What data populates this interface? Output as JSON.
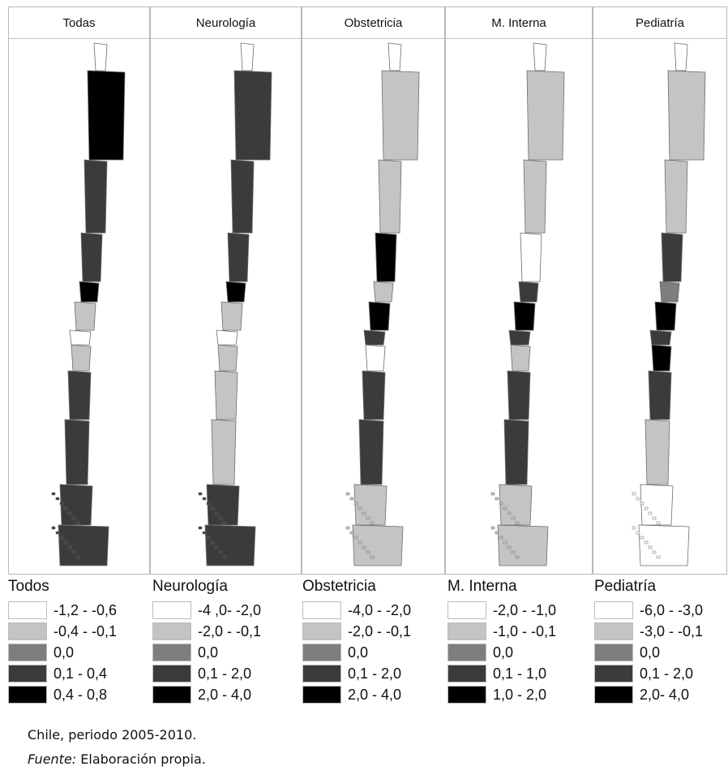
{
  "colors": {
    "c1": "#ffffff",
    "c2": "#c4c4c4",
    "c3": "#7e7e7e",
    "c4": "#3b3b3b",
    "c5": "#000000"
  },
  "panels": [
    {
      "title": "Todas",
      "legend_title": "Todos",
      "classes": [
        "-1,2 - -0,6",
        "-0,4 - -0,1",
        "0,0",
        "0,1 - 0,4",
        "0,4 - 0,8"
      ],
      "regions": [
        "c1",
        "c5",
        "c4",
        "c4",
        "c5",
        "c2",
        "c1",
        "c2",
        "c4",
        "c4",
        "c4",
        "c4"
      ]
    },
    {
      "title": "Neurología",
      "legend_title": "Neurología",
      "classes": [
        "-4 ,0- -2,0",
        "-2,0 - -0,1",
        "0,0",
        "0,1 - 2,0",
        "2,0 - 4,0"
      ],
      "regions": [
        "c1",
        "c4",
        "c4",
        "c4",
        "c5",
        "c2",
        "c1",
        "c2",
        "c2",
        "c2",
        "c4",
        "c4"
      ]
    },
    {
      "title": "Obstetricia",
      "legend_title": "Obstetricia",
      "classes": [
        "-4,0 - -2,0",
        "-2,0 - -0,1",
        "0,0",
        "0,1 - 2,0",
        "2,0 - 4,0"
      ],
      "regions": [
        "c1",
        "c2",
        "c2",
        "c5",
        "c2",
        "c5",
        "c4",
        "c1",
        "c4",
        "c4",
        "c2",
        "c2"
      ]
    },
    {
      "title": "M. Interna",
      "legend_title": "M. Interna",
      "classes": [
        "-2,0 - -1,0",
        "-1,0 - -0,1",
        "0,0",
        "0,1 - 1,0",
        "1,0 - 2,0"
      ],
      "regions": [
        "c1",
        "c2",
        "c2",
        "c1",
        "c4",
        "c5",
        "c4",
        "c2",
        "c4",
        "c4",
        "c2",
        "c2"
      ]
    },
    {
      "title": "Pediatría",
      "legend_title": "Pediatría",
      "classes": [
        "-6,0 - -3,0",
        "-3,0 - -0,1",
        "0,0",
        "0,1 - 2,0",
        "2,0- 4,0"
      ],
      "regions": [
        "c1",
        "c2",
        "c2",
        "c4",
        "c3",
        "c5",
        "c4",
        "c5",
        "c4",
        "c2",
        "c1",
        "c1"
      ]
    }
  ],
  "caption": {
    "line1": "Chile, periodo 2005-2010.",
    "source_label": "Fuente:",
    "source_text": " Elaboración propia."
  }
}
